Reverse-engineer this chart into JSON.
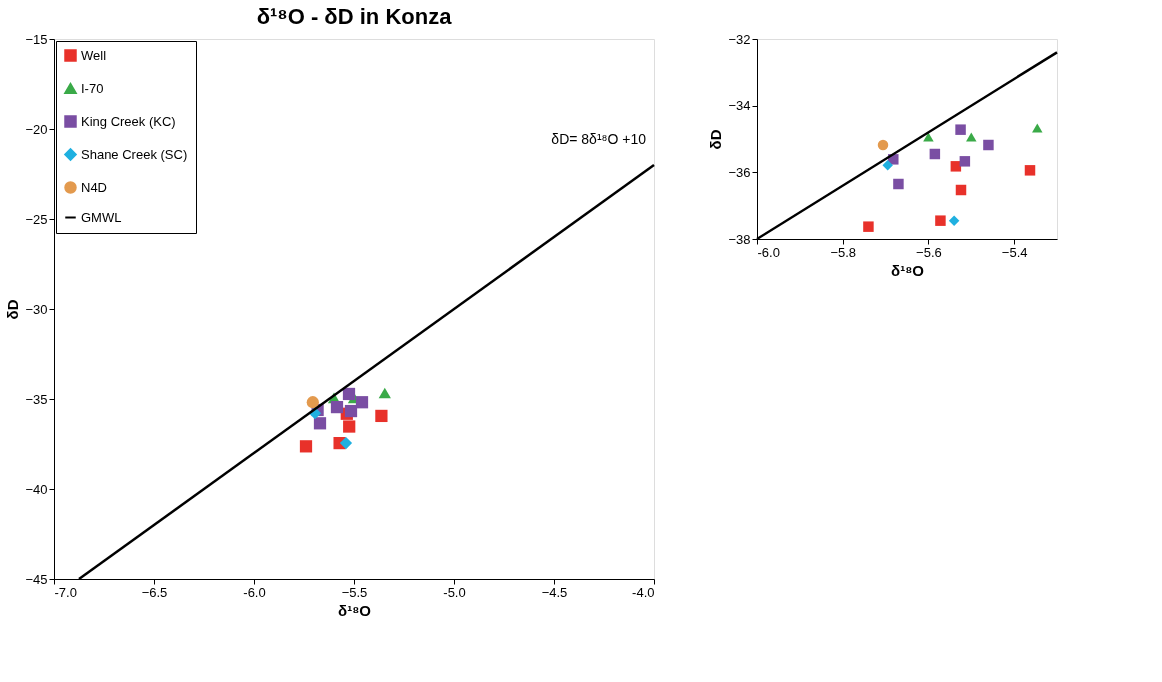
{
  "chart_data": [
    {
      "type": "scatter",
      "title": "δ¹⁸O - δD in Konza",
      "xlabel": "δ¹⁸O",
      "ylabel": "δD",
      "xlim": [
        -7.0,
        -4.0
      ],
      "xticks": [
        {
          "value": -7,
          "label": "-7.0"
        },
        -6.5,
        {
          "value": -6,
          "label": "-6.0"
        },
        -5.5,
        {
          "value": -5,
          "label": "-5.0"
        },
        -4.5,
        {
          "value": -4,
          "label": "-4.0"
        }
      ],
      "ylim": [
        -45,
        -15
      ],
      "yticks": [
        -45,
        -40,
        -35,
        -30,
        -25,
        -20,
        -15
      ],
      "grid": false,
      "legend": "top left",
      "annotations": [
        "δD= 8δ¹⁸O +10"
      ],
      "series": [
        {
          "name": "Well",
          "marker": "square",
          "color": "#e8312a",
          "x": [
            -5.74,
            -5.572,
            -5.536,
            -5.524,
            -5.363
          ],
          "values": [
            -37.63,
            -37.45,
            -35.82,
            -36.53,
            -35.94
          ]
        },
        {
          "name": "I-70",
          "marker": "triangle",
          "color": "#3aaa48",
          "x": [
            -5.6,
            -5.5,
            -5.346
          ],
          "values": [
            -34.94,
            -34.94,
            -34.67
          ]
        },
        {
          "name": "King Creek (KC)",
          "marker": "square",
          "color": "#7a4ea3",
          "x": [
            -5.682,
            -5.67,
            -5.585,
            -5.525,
            -5.515,
            -5.46
          ],
          "values": [
            -35.61,
            -36.35,
            -35.45,
            -34.72,
            -35.67,
            -35.18
          ]
        },
        {
          "name": "Shane Creek (SC)",
          "marker": "diamond",
          "color": "#1fb0e0",
          "x": [
            -5.695,
            -5.54
          ],
          "values": [
            -35.79,
            -37.45
          ]
        },
        {
          "name": "N4D",
          "marker": "circle",
          "color": "#e39a4e",
          "x": [
            -5.706
          ],
          "values": [
            -35.18
          ]
        },
        {
          "name": "GMWL",
          "type": "line",
          "line_style": "solid",
          "color": "#000000",
          "x": [
            -6.875,
            -4.0
          ],
          "values": [
            -45,
            -22
          ]
        }
      ]
    },
    {
      "type": "scatter",
      "xlabel": "δ¹⁸O",
      "ylabel": "δD",
      "xlim": [
        -6.0,
        -5.3
      ],
      "xticks": [
        {
          "value": -6,
          "label": "-6.0"
        },
        -5.8,
        -5.6,
        -5.4
      ],
      "ylim": [
        -38,
        -32
      ],
      "yticks": [
        -38,
        -36,
        -34,
        -32
      ],
      "grid": false,
      "legend": false,
      "series": [
        {
          "marker": "square",
          "color": "#e8312a",
          "x": [
            -5.74,
            -5.572,
            -5.536,
            -5.524,
            -5.363
          ],
          "values": [
            -37.63,
            -37.45,
            -35.82,
            -36.53,
            -35.94
          ]
        },
        {
          "marker": "triangle",
          "color": "#3aaa48",
          "x": [
            -5.6,
            -5.5,
            -5.346
          ],
          "values": [
            -34.94,
            -34.94,
            -34.67
          ]
        },
        {
          "marker": "square",
          "color": "#7a4ea3",
          "x": [
            -5.682,
            -5.67,
            -5.585,
            -5.525,
            -5.515,
            -5.46
          ],
          "values": [
            -35.61,
            -36.35,
            -35.45,
            -34.72,
            -35.67,
            -35.18
          ]
        },
        {
          "marker": "diamond",
          "color": "#1fb0e0",
          "x": [
            -5.695,
            -5.54
          ],
          "values": [
            -35.79,
            -37.45
          ]
        },
        {
          "marker": "circle",
          "color": "#e39a4e",
          "x": [
            -5.706
          ],
          "values": [
            -35.18
          ]
        },
        {
          "type": "line",
          "line_style": "solid",
          "color": "#000000",
          "x": [
            -6.0,
            -5.3
          ],
          "values": [
            -38,
            -32.4
          ]
        }
      ]
    }
  ]
}
